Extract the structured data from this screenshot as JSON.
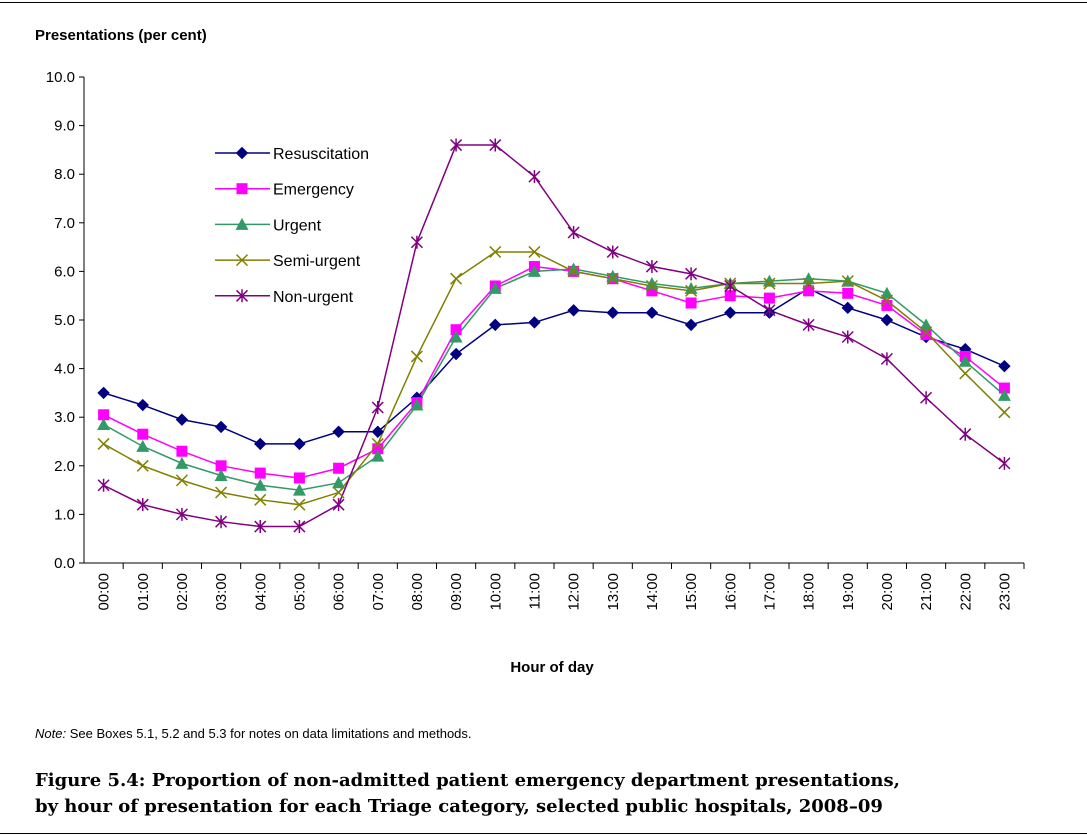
{
  "chart_data": {
    "type": "line",
    "y_axis_title": "Presentations (per cent)",
    "x_axis_title": "Hour of day",
    "categories": [
      "00:00",
      "01:00",
      "02:00",
      "03:00",
      "04:00",
      "05:00",
      "06:00",
      "07:00",
      "08:00",
      "09:00",
      "10:00",
      "11:00",
      "12:00",
      "13:00",
      "14:00",
      "15:00",
      "16:00",
      "17:00",
      "18:00",
      "19:00",
      "20:00",
      "21:00",
      "22:00",
      "23:00"
    ],
    "series": [
      {
        "name": "Resuscitation",
        "color": "#000080",
        "marker": "diamond",
        "values": [
          3.5,
          3.25,
          2.95,
          2.8,
          2.45,
          2.45,
          2.7,
          2.7,
          3.4,
          4.3,
          4.9,
          4.95,
          5.2,
          5.15,
          5.15,
          4.9,
          5.15,
          5.15,
          5.65,
          5.25,
          5.0,
          4.65,
          4.4,
          4.05
        ]
      },
      {
        "name": "Emergency",
        "color": "#ff00ff",
        "marker": "square",
        "values": [
          3.05,
          2.65,
          2.3,
          2.0,
          1.85,
          1.75,
          1.95,
          2.35,
          3.3,
          4.8,
          5.7,
          6.1,
          6.0,
          5.85,
          5.6,
          5.35,
          5.5,
          5.45,
          5.6,
          5.55,
          5.3,
          4.7,
          4.25,
          3.6
        ]
      },
      {
        "name": "Urgent",
        "color": "#339966",
        "marker": "triangle",
        "values": [
          2.85,
          2.4,
          2.05,
          1.8,
          1.6,
          1.5,
          1.65,
          2.2,
          3.25,
          4.65,
          5.65,
          6.0,
          6.05,
          5.9,
          5.75,
          5.65,
          5.75,
          5.8,
          5.85,
          5.8,
          5.55,
          4.9,
          4.15,
          3.45
        ]
      },
      {
        "name": "Semi-urgent",
        "color": "#808000",
        "marker": "x",
        "values": [
          2.45,
          2.0,
          1.7,
          1.45,
          1.3,
          1.2,
          1.45,
          2.45,
          4.25,
          5.85,
          6.4,
          6.4,
          6.0,
          5.85,
          5.7,
          5.6,
          5.75,
          5.75,
          5.75,
          5.8,
          5.4,
          4.75,
          3.9,
          3.1
        ]
      },
      {
        "name": "Non-urgent",
        "color": "#800080",
        "marker": "star",
        "values": [
          1.6,
          1.2,
          1.0,
          0.85,
          0.75,
          0.75,
          1.2,
          3.2,
          6.6,
          8.6,
          8.6,
          7.95,
          6.8,
          6.4,
          6.1,
          5.95,
          5.7,
          5.2,
          4.9,
          4.65,
          4.2,
          3.4,
          2.65,
          2.05
        ]
      }
    ],
    "ylim": [
      0,
      10
    ],
    "yticks": [
      {
        "value": 0,
        "label": "0.0"
      },
      {
        "value": 1,
        "label": "1.0"
      },
      {
        "value": 2,
        "label": "2.0"
      },
      {
        "value": 3,
        "label": "3.0"
      },
      {
        "value": 4,
        "label": "4.0"
      },
      {
        "value": 5,
        "label": "5.0"
      },
      {
        "value": 6,
        "label": "6.0"
      },
      {
        "value": 7,
        "label": "7.0"
      },
      {
        "value": 8,
        "label": "8.0"
      },
      {
        "value": 9,
        "label": "9.0"
      },
      {
        "value": 10,
        "label": "10.0"
      }
    ],
    "grid": false,
    "legend": "upper left"
  },
  "note": {
    "label": "Note:",
    "text": "See Boxes 5.1, 5.2 and 5.3 for notes on data limitations and methods."
  },
  "caption": {
    "lines": [
      "Figure 5.4: Proportion of non-admitted patient emergency department presentations,",
      "by hour of presentation for each Triage category, selected public hospitals, 2008–09"
    ]
  }
}
